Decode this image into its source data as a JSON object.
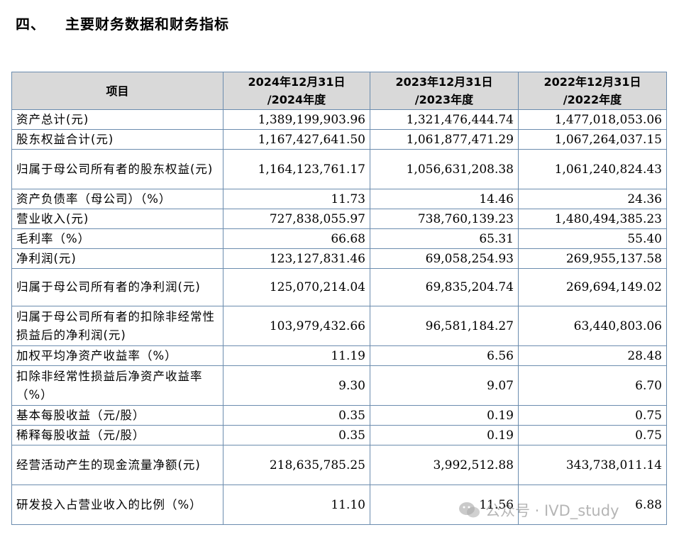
{
  "section": {
    "number": "四、",
    "title": "主要财务数据和财务指标"
  },
  "table": {
    "headers": [
      {
        "line1": "项目",
        "line2": ""
      },
      {
        "line1": "2024年12月31日",
        "line2": "/2024年度"
      },
      {
        "line1": "2023年12月31日",
        "line2": "/2023年度"
      },
      {
        "line1": "2022年12月31日",
        "line2": "/2022年度"
      }
    ],
    "rows": [
      {
        "label": "资产总计(元)",
        "v2024": "1,389,199,903.96",
        "v2023": "1,321,476,444.74",
        "v2022": "1,477,018,053.06"
      },
      {
        "label": "股东权益合计(元)",
        "v2024": "1,167,427,641.50",
        "v2023": "1,061,877,471.29",
        "v2022": "1,067,264,037.15"
      },
      {
        "label": "归属于母公司所有者的股东权益(元)",
        "v2024": "1,164,123,761.17",
        "v2023": "1,056,631,208.38",
        "v2022": "1,061,240,824.43"
      },
      {
        "label": "资产负债率（母公司）（%）",
        "v2024": "11.73",
        "v2023": "14.46",
        "v2022": "24.36"
      },
      {
        "label": "营业收入(元)",
        "v2024": "727,838,055.97",
        "v2023": "738,760,139.23",
        "v2022": "1,480,494,385.23"
      },
      {
        "label": "毛利率（%）",
        "v2024": "66.68",
        "v2023": "65.31",
        "v2022": "55.40"
      },
      {
        "label": "净利润(元)",
        "v2024": "123,127,831.46",
        "v2023": "69,058,254.93",
        "v2022": "269,955,137.58"
      },
      {
        "label": "归属于母公司所有者的净利润(元)",
        "v2024": "125,070,214.04",
        "v2023": "69,835,204.74",
        "v2022": "269,694,149.02"
      },
      {
        "label": "归属于母公司所有者的扣除非经常性损益后的净利润(元)",
        "v2024": "103,979,432.66",
        "v2023": "96,581,184.27",
        "v2022": "63,440,803.06"
      },
      {
        "label": "加权平均净资产收益率（%）",
        "v2024": "11.19",
        "v2023": "6.56",
        "v2022": "28.48"
      },
      {
        "label": "扣除非经常性损益后净资产收益率（%）",
        "v2024": "9.30",
        "v2023": "9.07",
        "v2022": "6.70"
      },
      {
        "label": "基本每股收益（元/股）",
        "v2024": "0.35",
        "v2023": "0.19",
        "v2022": "0.75"
      },
      {
        "label": "稀释每股收益（元/股）",
        "v2024": "0.35",
        "v2023": "0.19",
        "v2022": "0.75"
      },
      {
        "label": "经营活动产生的现金流量净额(元)",
        "v2024": "218,635,785.25",
        "v2023": "3,992,512.88",
        "v2022": "343,738,011.14"
      },
      {
        "label": "研发投入占营业收入的比例（%）",
        "v2024": "11.10",
        "v2023": "11.56",
        "v2022": "6.88"
      }
    ]
  },
  "watermark": {
    "text": "公众号 · IVD_study",
    "icon": "wechat-icon"
  }
}
